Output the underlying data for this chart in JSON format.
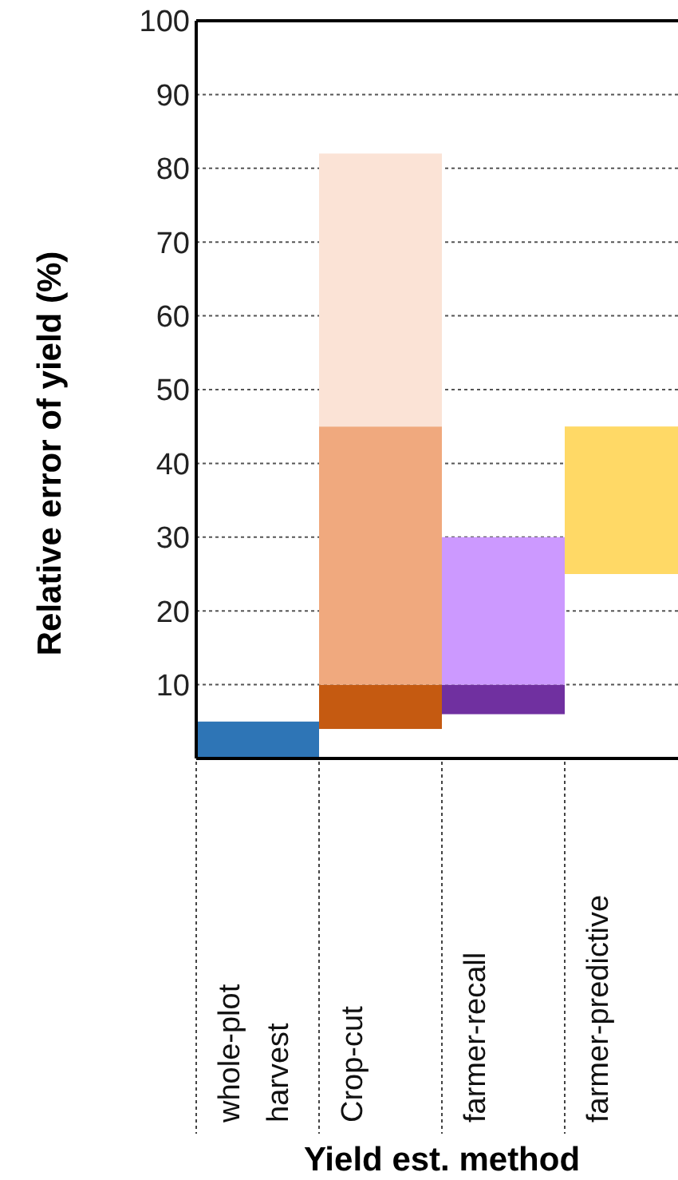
{
  "chart_data": {
    "type": "bar",
    "xlabel": "Yield est. method",
    "ylabel": "Relative error of yield (%)",
    "categories": [
      "whole-plot harvest",
      "Crop-cut",
      "farmer-recall",
      "farmer-predictive"
    ],
    "series": [
      {
        "colors": [
          "#2e75b6",
          "#c55a11",
          "#7030a0",
          "#ffd966"
        ],
        "base": [
          0,
          4,
          6,
          25
        ],
        "values": [
          5,
          6,
          4,
          20
        ]
      },
      {
        "colors": [
          null,
          "#f0a97e",
          "#cc99ff",
          null
        ],
        "base": [
          null,
          10,
          10,
          null
        ],
        "values": [
          null,
          35,
          20,
          null
        ]
      },
      {
        "colors": [
          null,
          "#fbe3d6",
          null,
          null
        ],
        "base": [
          null,
          45,
          null,
          null
        ],
        "values": [
          null,
          37,
          null,
          null
        ]
      }
    ],
    "ylim": [
      0,
      100
    ],
    "yticks": [
      10,
      20,
      30,
      40,
      50,
      60,
      70,
      80,
      90,
      100
    ],
    "grid": "y"
  }
}
